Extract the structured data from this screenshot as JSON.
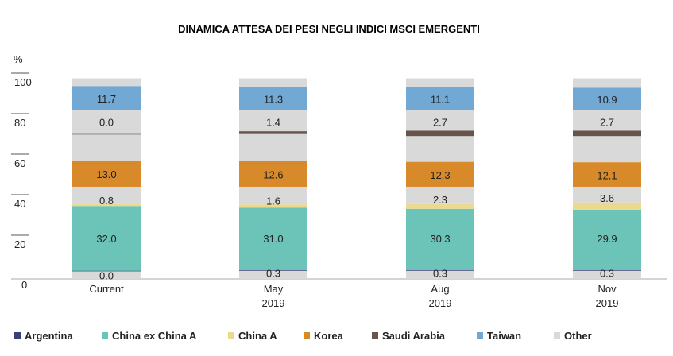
{
  "chart_data": {
    "type": "bar",
    "stacked": true,
    "title": "DINAMICA ATTESA DEI PESI NEGLI INDICI MSCI EMERGENTI",
    "ylabel": "%",
    "ylim": [
      0,
      100
    ],
    "yticks": [
      0,
      20,
      40,
      60,
      80,
      100
    ],
    "categories": [
      {
        "line1": "Current",
        "line2": ""
      },
      {
        "line1": "May",
        "line2": "2019"
      },
      {
        "line1": "Aug",
        "line2": "2019"
      },
      {
        "line1": "Nov",
        "line2": "2019"
      }
    ],
    "series": [
      {
        "name": "Argentina",
        "color": "#3b3e78",
        "values": [
          0.0,
          0.3,
          0.3,
          0.3
        ],
        "labels": [
          "0.0",
          "0.3",
          "0.3",
          "0.3"
        ]
      },
      {
        "name": "China ex China A",
        "color": "#6cc4b8",
        "values": [
          32.0,
          31.0,
          30.3,
          29.9
        ],
        "labels": [
          "32.0",
          "31.0",
          "30.3",
          "29.9"
        ]
      },
      {
        "name": "China A",
        "color": "#ead98f",
        "values": [
          0.8,
          1.6,
          2.3,
          3.6
        ],
        "labels": [
          "0.8",
          "1.6",
          "2.3",
          "3.6"
        ]
      },
      {
        "name": "Korea",
        "color": "#d88a2a",
        "values": [
          13.0,
          12.6,
          12.3,
          12.1
        ],
        "labels": [
          "13.0",
          "12.6",
          "12.3",
          "12.1"
        ]
      },
      {
        "name": "Saudi Arabia",
        "color": "#65554c",
        "values": [
          0.0,
          1.4,
          2.7,
          2.7
        ],
        "labels": [
          "0.0",
          "1.4",
          "2.7",
          "2.7"
        ]
      },
      {
        "name": "Taiwan",
        "color": "#72a8d4",
        "values": [
          11.7,
          11.3,
          11.1,
          10.9
        ],
        "labels": [
          "11.7",
          "11.3",
          "11.1",
          "10.9"
        ]
      },
      {
        "name": "Other",
        "color": "#d9d9d9",
        "values": [
          null,
          null,
          null,
          null
        ],
        "labels": [
          "",
          "",
          "",
          ""
        ]
      }
    ],
    "segments": [
      [
        [
          "Other",
          0,
          4
        ],
        [
          "Argentina",
          4,
          4
        ],
        [
          "China ex China A",
          4,
          36
        ],
        [
          "China A",
          36,
          37
        ],
        [
          "Other",
          37,
          45.5
        ],
        [
          "Korea",
          45.5,
          58.5
        ],
        [
          "Other",
          58.5,
          71.5
        ],
        [
          "Saudi Arabia",
          71.5,
          71.5
        ],
        [
          "Other",
          71.5,
          83.5
        ],
        [
          "Taiwan",
          83.5,
          95.2
        ],
        [
          "Other",
          95.2,
          99
        ]
      ],
      [
        [
          "Other",
          0,
          4
        ],
        [
          "Argentina",
          4,
          4.3
        ],
        [
          "China ex China A",
          4.3,
          35.2
        ],
        [
          "China A",
          35.2,
          36.8
        ],
        [
          "Other",
          36.8,
          45.5
        ],
        [
          "Korea",
          45.5,
          58.1
        ],
        [
          "Other",
          58.1,
          71.5
        ],
        [
          "Saudi Arabia",
          71.5,
          72.9
        ],
        [
          "Other",
          72.9,
          83.5
        ],
        [
          "Taiwan",
          83.5,
          94.8
        ],
        [
          "Other",
          94.8,
          99
        ]
      ],
      [
        [
          "Other",
          0,
          4
        ],
        [
          "Argentina",
          4,
          4.3
        ],
        [
          "China ex China A",
          4.3,
          34.6
        ],
        [
          "China A",
          34.6,
          36.9
        ],
        [
          "Other",
          36.9,
          45.5
        ],
        [
          "Korea",
          45.5,
          57.8
        ],
        [
          "Other",
          57.8,
          70.5
        ],
        [
          "Saudi Arabia",
          70.5,
          73.2
        ],
        [
          "Other",
          73.2,
          83.5
        ],
        [
          "Taiwan",
          83.5,
          94.6
        ],
        [
          "Other",
          94.6,
          99
        ]
      ],
      [
        [
          "Other",
          0,
          4
        ],
        [
          "Argentina",
          4,
          4.3
        ],
        [
          "China ex China A",
          4.3,
          34.2
        ],
        [
          "China A",
          34.2,
          37.8
        ],
        [
          "Other",
          37.8,
          45.5
        ],
        [
          "Korea",
          45.5,
          57.6
        ],
        [
          "Other",
          57.6,
          70.5
        ],
        [
          "Saudi Arabia",
          70.5,
          73.2
        ],
        [
          "Other",
          73.2,
          83.5
        ],
        [
          "Taiwan",
          83.5,
          94.4
        ],
        [
          "Other",
          94.4,
          99
        ]
      ]
    ],
    "grid": false,
    "legend_position": "bottom"
  }
}
